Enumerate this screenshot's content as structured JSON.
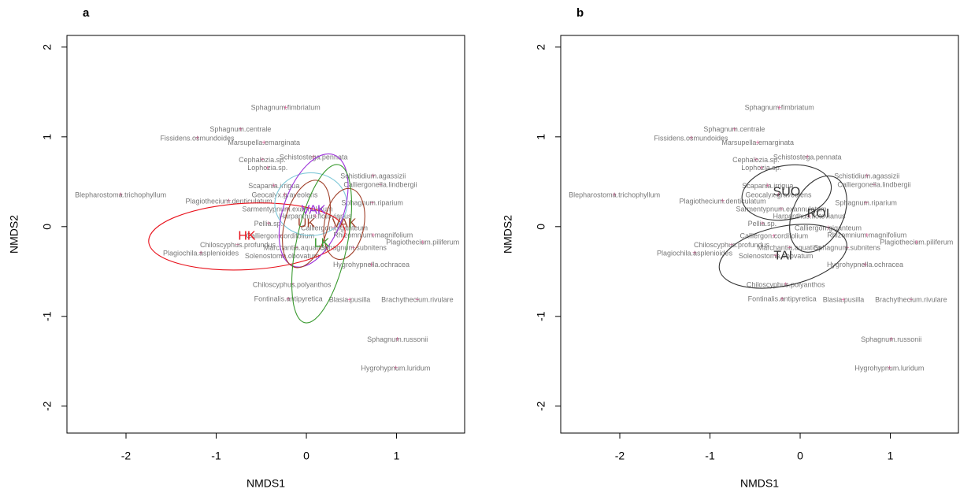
{
  "chart_data": [
    {
      "type": "scatter",
      "panel": "a",
      "xlabel": "NMDS1",
      "ylabel": "NMDS2",
      "xlim": [
        -2.655,
        1.755
      ],
      "ylim": [
        -2.3,
        2.13
      ],
      "xticks": [
        -2,
        -1,
        0,
        1
      ],
      "yticks": [
        -2,
        -1,
        0,
        1,
        2
      ],
      "point_color": "#e0609a",
      "label_color": "#777777",
      "species": [
        {
          "name": "Sphagnum.fimbriatum",
          "x": -0.23,
          "y": 1.32
        },
        {
          "name": "Sphagnum.centrale",
          "x": -0.73,
          "y": 1.08
        },
        {
          "name": "Fissidens.osmundoides",
          "x": -1.21,
          "y": 0.98
        },
        {
          "name": "Marsupella.emarginata",
          "x": -0.47,
          "y": 0.93
        },
        {
          "name": "Schistostega.pennata",
          "x": 0.08,
          "y": 0.77
        },
        {
          "name": "Cephalozia.sp.",
          "x": -0.49,
          "y": 0.74
        },
        {
          "name": "Lophozia.sp.",
          "x": -0.43,
          "y": 0.65
        },
        {
          "name": "Schistidium.agassizii",
          "x": 0.74,
          "y": 0.56
        },
        {
          "name": "Calliergonella.lindbergii",
          "x": 0.82,
          "y": 0.46
        },
        {
          "name": "Scapania.irrigua",
          "x": -0.36,
          "y": 0.45
        },
        {
          "name": "Geocalyx.graveolens",
          "x": -0.24,
          "y": 0.35
        },
        {
          "name": "Blepharostoma.trichophyllum",
          "x": -2.06,
          "y": 0.35
        },
        {
          "name": "Plagiothecium.denticulatum",
          "x": -0.86,
          "y": 0.28
        },
        {
          "name": "Sphagnum.riparium",
          "x": 0.73,
          "y": 0.26
        },
        {
          "name": "Sarmentypnum.exannulatum",
          "x": -0.21,
          "y": 0.19
        },
        {
          "name": "Harpanthus.flotovianus",
          "x": 0.1,
          "y": 0.11
        },
        {
          "name": "Pellia.sp.",
          "x": -0.42,
          "y": 0.03
        },
        {
          "name": "Calliergon.giganteum",
          "x": 0.31,
          "y": -0.02
        },
        {
          "name": "Calliergon.cordifolium",
          "x": -0.29,
          "y": -0.11
        },
        {
          "name": "Rhizomnium.magnifolium",
          "x": 0.74,
          "y": -0.1
        },
        {
          "name": "Plagiothecium.piliferum",
          "x": 1.29,
          "y": -0.18
        },
        {
          "name": "Chiloscyphus.profundus",
          "x": -0.76,
          "y": -0.21
        },
        {
          "name": "Marchantia.aquatica",
          "x": -0.12,
          "y": -0.24
        },
        {
          "name": "Sphagnum.subnitens",
          "x": 0.52,
          "y": -0.24
        },
        {
          "name": "Plagiochila.asplenioides",
          "x": -1.17,
          "y": -0.3
        },
        {
          "name": "Solenostoma.obovatum",
          "x": -0.27,
          "y": -0.33
        },
        {
          "name": "Hygrohypnella.ochracea",
          "x": 0.72,
          "y": -0.43
        },
        {
          "name": "Chiloscyphus.polyanthos",
          "x": -0.16,
          "y": -0.65
        },
        {
          "name": "Fontinalis.antipyretica",
          "x": -0.2,
          "y": -0.81
        },
        {
          "name": "Blasia.pusilla",
          "x": 0.48,
          "y": -0.82
        },
        {
          "name": "Brachythecium.rivulare",
          "x": 1.23,
          "y": -0.82
        },
        {
          "name": "Sphagnum.russonii",
          "x": 1.01,
          "y": -1.26
        },
        {
          "name": "Hygrohypnum.luridum",
          "x": 0.99,
          "y": -1.58
        }
      ],
      "groups": [
        {
          "name": "HK",
          "color": "#e8101a",
          "x": -0.66,
          "y": -0.11,
          "rx": 1.09,
          "ry": 0.37,
          "angle": 3
        },
        {
          "color": "#7fc8d8",
          "x": 0.05,
          "y": 0.25,
          "rx": 0.4,
          "ry": 0.35,
          "angle": 0
        },
        {
          "name": "VAK",
          "color": "#9b30d9",
          "x": 0.08,
          "y": 0.18,
          "rx": 0.33,
          "ry": 0.66,
          "angle": -20
        },
        {
          "name": "UK",
          "color": "#a0402a",
          "x": 0.0,
          "y": 0.03,
          "rx": 0.24,
          "ry": 0.5,
          "angle": -15
        },
        {
          "name": "VAK",
          "color": "#a0402a",
          "x": 0.42,
          "y": 0.03,
          "rx": 0.22,
          "ry": 0.4,
          "angle": -10
        },
        {
          "name": "LK",
          "color": "#3a9a30",
          "x": 0.17,
          "y": -0.19,
          "rx": 0.28,
          "ry": 0.9,
          "angle": -12
        }
      ]
    },
    {
      "type": "scatter",
      "panel": "b",
      "xlabel": "NMDS1",
      "ylabel": "NMDS2",
      "xlim": [
        -2.655,
        1.755
      ],
      "ylim": [
        -2.3,
        2.13
      ],
      "xticks": [
        -2,
        -1,
        0,
        1
      ],
      "yticks": [
        -2,
        -1,
        0,
        1,
        2
      ],
      "point_color": "#e0609a",
      "label_color": "#777777",
      "species": [
        {
          "name": "Sphagnum.fimbriatum",
          "x": -0.23,
          "y": 1.32
        },
        {
          "name": "Sphagnum.centrale",
          "x": -0.73,
          "y": 1.08
        },
        {
          "name": "Fissidens.osmundoides",
          "x": -1.21,
          "y": 0.98
        },
        {
          "name": "Marsupella.emarginata",
          "x": -0.47,
          "y": 0.93
        },
        {
          "name": "Schistostega.pennata",
          "x": 0.08,
          "y": 0.77
        },
        {
          "name": "Cephalozia.sp.",
          "x": -0.49,
          "y": 0.74
        },
        {
          "name": "Lophozia.sp.",
          "x": -0.43,
          "y": 0.65
        },
        {
          "name": "Schistidium.agassizii",
          "x": 0.74,
          "y": 0.56
        },
        {
          "name": "Calliergonella.lindbergii",
          "x": 0.82,
          "y": 0.46
        },
        {
          "name": "Scapania.irrigua",
          "x": -0.36,
          "y": 0.45
        },
        {
          "name": "Geocalyx.graveolens",
          "x": -0.24,
          "y": 0.35
        },
        {
          "name": "Blepharostoma.trichophyllum",
          "x": -2.06,
          "y": 0.35
        },
        {
          "name": "Plagiothecium.denticulatum",
          "x": -0.86,
          "y": 0.28
        },
        {
          "name": "Sphagnum.riparium",
          "x": 0.73,
          "y": 0.26
        },
        {
          "name": "Sarmentypnum.exannulatum",
          "x": -0.21,
          "y": 0.19
        },
        {
          "name": "Harpanthus.flotovianus",
          "x": 0.1,
          "y": 0.11
        },
        {
          "name": "Pellia.sp.",
          "x": -0.42,
          "y": 0.03
        },
        {
          "name": "Calliergon.giganteum",
          "x": 0.31,
          "y": -0.02
        },
        {
          "name": "Calliergon.cordifolium",
          "x": -0.29,
          "y": -0.11
        },
        {
          "name": "Rhizomnium.magnifolium",
          "x": 0.74,
          "y": -0.1
        },
        {
          "name": "Plagiothecium.piliferum",
          "x": 1.29,
          "y": -0.18
        },
        {
          "name": "Chiloscyphus.profundus",
          "x": -0.76,
          "y": -0.21
        },
        {
          "name": "Marchantia.aquatica",
          "x": -0.12,
          "y": -0.24
        },
        {
          "name": "Sphagnum.subnitens",
          "x": 0.52,
          "y": -0.24
        },
        {
          "name": "Plagiochila.asplenioides",
          "x": -1.17,
          "y": -0.3
        },
        {
          "name": "Solenostoma.obovatum",
          "x": -0.27,
          "y": -0.33
        },
        {
          "name": "Hygrohypnella.ochracea",
          "x": 0.72,
          "y": -0.43
        },
        {
          "name": "Chiloscyphus.polyanthos",
          "x": -0.16,
          "y": -0.65
        },
        {
          "name": "Fontinalis.antipyretica",
          "x": -0.2,
          "y": -0.81
        },
        {
          "name": "Blasia.pusilla",
          "x": 0.48,
          "y": -0.82
        },
        {
          "name": "Brachythecium.rivulare",
          "x": 1.23,
          "y": -0.82
        },
        {
          "name": "Sphagnum.russonii",
          "x": 1.01,
          "y": -1.26
        },
        {
          "name": "Hygrohypnum.luridum",
          "x": 0.99,
          "y": -1.58
        }
      ],
      "groups": [
        {
          "name": "SUO",
          "color": "#333333",
          "x": -0.15,
          "y": 0.38,
          "rx": 0.5,
          "ry": 0.3,
          "angle": 10
        },
        {
          "name": "ROI",
          "color": "#333333",
          "x": 0.2,
          "y": 0.14,
          "rx": 0.28,
          "ry": 0.45,
          "angle": -25
        },
        {
          "name": "TAI",
          "color": "#333333",
          "x": -0.19,
          "y": -0.33,
          "rx": 0.72,
          "ry": 0.33,
          "angle": 12
        }
      ]
    }
  ]
}
